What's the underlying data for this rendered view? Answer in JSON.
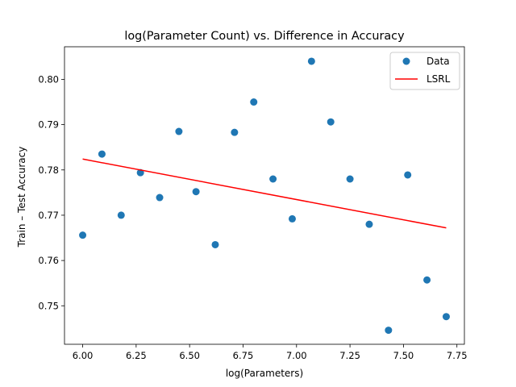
{
  "chart_data": {
    "type": "scatter",
    "title": "log(Parameter Count) vs. Difference in Accuracy",
    "xlabel": "log(Parameters)",
    "ylabel": "Train – Test Accuracy",
    "xlim": [
      5.915,
      7.785
    ],
    "ylim": [
      0.7415,
      0.8072
    ],
    "xticks": [
      6.0,
      6.25,
      6.5,
      6.75,
      7.0,
      7.25,
      7.5,
      7.75
    ],
    "xtick_labels": [
      "6.00",
      "6.25",
      "6.50",
      "6.75",
      "7.00",
      "7.25",
      "7.50",
      "7.75"
    ],
    "yticks": [
      0.75,
      0.76,
      0.77,
      0.78,
      0.79,
      0.8
    ],
    "ytick_labels": [
      "0.75",
      "0.76",
      "0.77",
      "0.78",
      "0.79",
      "0.80"
    ],
    "grid": false,
    "legend_position": "top-right",
    "series": [
      {
        "name": "Data",
        "kind": "scatter",
        "color": "#1f77b4",
        "x": [
          6.0,
          6.09,
          6.18,
          6.27,
          6.36,
          6.45,
          6.53,
          6.62,
          6.71,
          6.8,
          6.89,
          6.98,
          7.07,
          7.16,
          7.25,
          7.34,
          7.43,
          7.52,
          7.61,
          7.7
        ],
        "y": [
          0.7656,
          0.7835,
          0.77,
          0.7794,
          0.7739,
          0.7885,
          0.7752,
          0.7635,
          0.7883,
          0.795,
          0.778,
          0.7692,
          0.804,
          0.7906,
          0.778,
          0.768,
          0.7446,
          0.7789,
          0.7557,
          0.7476
        ]
      },
      {
        "name": "LSRL",
        "kind": "line",
        "color": "#ff0000",
        "x": [
          6.0,
          7.7
        ],
        "y": [
          0.7824,
          0.7672
        ]
      }
    ]
  }
}
